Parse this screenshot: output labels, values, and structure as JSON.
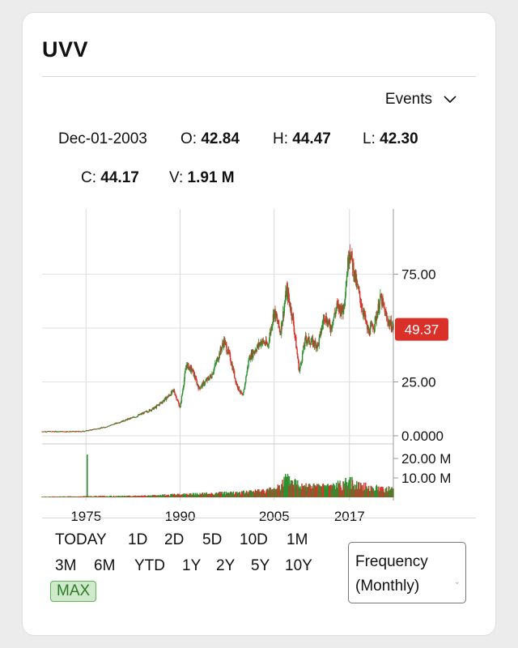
{
  "card": {
    "title": "UVV",
    "events_label": "Events",
    "ohlc": {
      "date": "Dec-01-2003",
      "open_label": "O:",
      "open": "42.84",
      "high_label": "H:",
      "high": "44.47",
      "low_label": "L:",
      "low": "42.30",
      "close_label": "C:",
      "close": "44.17",
      "volume_label": "V:",
      "volume": "1.91 M"
    },
    "periods": [
      "TODAY",
      "1D",
      "2D",
      "5D",
      "10D",
      "1M",
      "3M",
      "6M",
      "YTD",
      "1Y",
      "2Y",
      "5Y",
      "10Y",
      "MAX"
    ],
    "active_period": "MAX",
    "frequency_line1": "Frequency",
    "frequency_line2": "(Monthly)"
  },
  "chart_data": {
    "type": "candlestick",
    "price_axis": {
      "ticks": [
        "75.00",
        "25.00",
        "0.0000"
      ],
      "tick_values": [
        75,
        25,
        0
      ],
      "range": [
        -3,
        103
      ]
    },
    "volume_axis": {
      "ticks": [
        "20.00 M",
        "10.00 M"
      ],
      "tick_values": [
        20,
        10
      ]
    },
    "x_axis": {
      "ticks": [
        "1975",
        "1990",
        "2005",
        "2017"
      ],
      "tick_values": [
        1975,
        1990,
        2005,
        2017
      ],
      "range": [
        1968,
        2024
      ]
    },
    "last_price": "49.37",
    "last_price_value": 49.37,
    "up_color": "#2f8f2f",
    "down_color": "#d9302a",
    "price_series": [
      [
        1968,
        2
      ],
      [
        1974,
        2
      ],
      [
        1975,
        2.3
      ],
      [
        1978,
        4
      ],
      [
        1980,
        6
      ],
      [
        1983,
        9
      ],
      [
        1986,
        13
      ],
      [
        1988,
        18
      ],
      [
        1989,
        21
      ],
      [
        1990,
        13
      ],
      [
        1991,
        33
      ],
      [
        1992,
        30
      ],
      [
        1993,
        22
      ],
      [
        1995,
        28
      ],
      [
        1997,
        44
      ],
      [
        1998,
        36
      ],
      [
        1999,
        24
      ],
      [
        2000,
        18
      ],
      [
        2001,
        36
      ],
      [
        2003,
        44
      ],
      [
        2004,
        42
      ],
      [
        2005,
        58
      ],
      [
        2006,
        48
      ],
      [
        2007,
        68
      ],
      [
        2008,
        54
      ],
      [
        2009,
        30
      ],
      [
        2010,
        45
      ],
      [
        2012,
        42
      ],
      [
        2013,
        56
      ],
      [
        2014,
        50
      ],
      [
        2015,
        60
      ],
      [
        2016,
        58
      ],
      [
        2017,
        87
      ],
      [
        2018,
        72
      ],
      [
        2019,
        60
      ],
      [
        2020,
        48
      ],
      [
        2021,
        52
      ],
      [
        2022,
        64
      ],
      [
        2023,
        54
      ],
      [
        2024,
        50
      ]
    ],
    "volume_series": [
      [
        1968,
        0.3
      ],
      [
        1975,
        0.5
      ],
      [
        1985,
        0.8
      ],
      [
        1990,
        1.5
      ],
      [
        2000,
        2.5
      ],
      [
        2005,
        4
      ],
      [
        2007,
        9
      ],
      [
        2009,
        7
      ],
      [
        2012,
        5
      ],
      [
        2015,
        6
      ],
      [
        2017,
        8
      ],
      [
        2020,
        5
      ],
      [
        2024,
        4
      ]
    ],
    "volume_spikes": [
      [
        1975.2,
        22
      ],
      [
        2006.8,
        12
      ],
      [
        2016.4,
        10
      ]
    ]
  }
}
